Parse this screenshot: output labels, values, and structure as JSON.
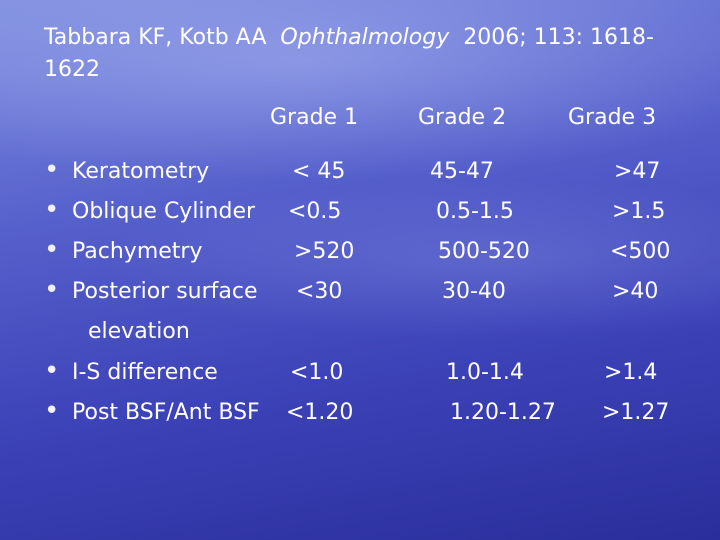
{
  "header": {
    "authors": "Tabbara KF, Kotb AA",
    "journal": "Ophthalmology",
    "details": "2006; 113: 1618-1622"
  },
  "table": {
    "columns": [
      "Grade 1",
      "Grade 2",
      "Grade 3"
    ],
    "rows": [
      [
        "Keratometry",
        "< 45",
        "45-47",
        ">47"
      ],
      [
        "Oblique Cylinder",
        "<0.5",
        "0.5-1.5",
        ">1.5"
      ],
      [
        "Pachymetry",
        ">520",
        "500-520",
        "<500"
      ],
      [
        "Posterior surface elevation",
        "<30",
        "30-40",
        ">40"
      ],
      [
        "I-S difference",
        "<1.0",
        "1.0-1.4",
        ">1.4"
      ],
      [
        "Post BSF/Ant BSF",
        "<1.20",
        "1.20-1.27",
        ">1.27"
      ]
    ]
  }
}
